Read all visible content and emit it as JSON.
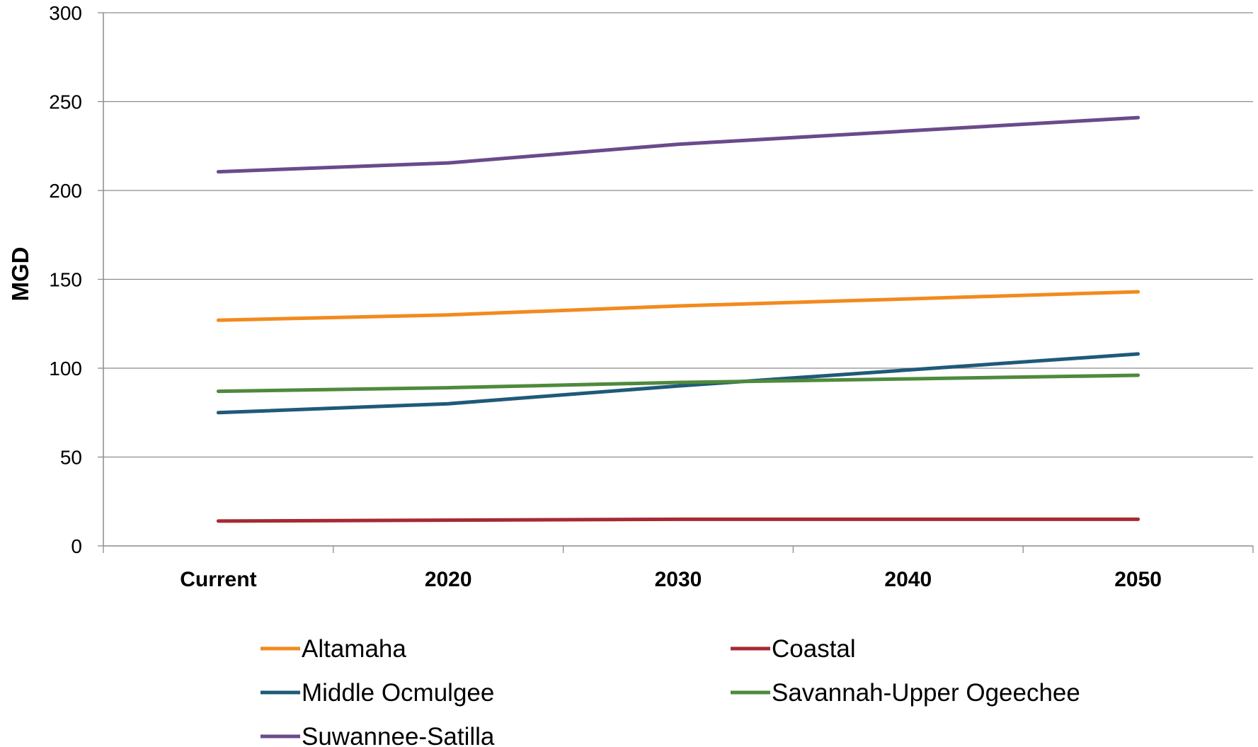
{
  "chart_data": {
    "type": "line",
    "title": "",
    "xlabel": "",
    "ylabel": "MGD",
    "ylim": [
      0,
      300
    ],
    "yticks": [
      0,
      50,
      100,
      150,
      200,
      250,
      300
    ],
    "grid": true,
    "legend_position": "bottom",
    "categories": [
      "Current",
      "2020",
      "2030",
      "2040",
      "2050"
    ],
    "series": [
      {
        "name": "Altamaha",
        "color": "#f28a1e",
        "values": [
          127,
          130,
          135,
          139,
          143
        ]
      },
      {
        "name": "Coastal",
        "color": "#a52a33",
        "values": [
          14,
          14.5,
          15,
          15,
          15
        ]
      },
      {
        "name": "Middle Ocmulgee",
        "color": "#1f5a78",
        "values": [
          75,
          80,
          90,
          99,
          108
        ]
      },
      {
        "name": "Savannah-Upper Ogeechee",
        "color": "#4e8a3c",
        "values": [
          87,
          89,
          92,
          94,
          96
        ]
      },
      {
        "name": "Suwannee-Satilla",
        "color": "#6a4a8c",
        "values": [
          210.5,
          215.5,
          226,
          233.5,
          241
        ]
      }
    ]
  }
}
